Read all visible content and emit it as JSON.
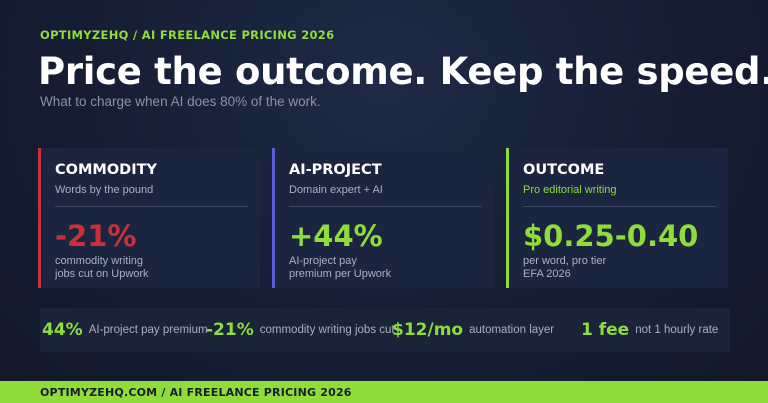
{
  "brand": "OPTIMYZEHQ  /  AI FREELANCE PRICING 2026",
  "headline": "Price the outcome. Keep the speed.",
  "subtitle": "What to charge when AI does 80% of the work.",
  "colors": {
    "accent": "#8fdc3a",
    "commodity": "#c8313a",
    "ai_project": "#5b5fd6",
    "outcome": "#8fdc3a"
  },
  "cards": [
    {
      "name": "COMMODITY",
      "desc": "Words by the pound",
      "big": "-21%",
      "note": [
        "commodity writing",
        "jobs cut on Upwork"
      ]
    },
    {
      "name": "AI-PROJECT",
      "desc": "Domain expert + AI",
      "big": "+44%",
      "note": [
        "AI-project pay",
        "premium per Upwork"
      ]
    },
    {
      "name": "OUTCOME",
      "desc": "Pro editorial writing",
      "big": "$0.25-0.40",
      "note": [
        "per word, pro tier",
        "EFA 2026"
      ]
    }
  ],
  "stats": [
    {
      "value": "44%",
      "label": "AI-project pay premium"
    },
    {
      "value": "-21%",
      "label": "commodity writing jobs cut"
    },
    {
      "value": "$12/mo",
      "label": "automation layer"
    },
    {
      "value": "1 fee",
      "label": "not 1 hourly rate"
    }
  ],
  "footer": "OPTIMYZEHQ.COM  /  AI FREELANCE PRICING 2026"
}
